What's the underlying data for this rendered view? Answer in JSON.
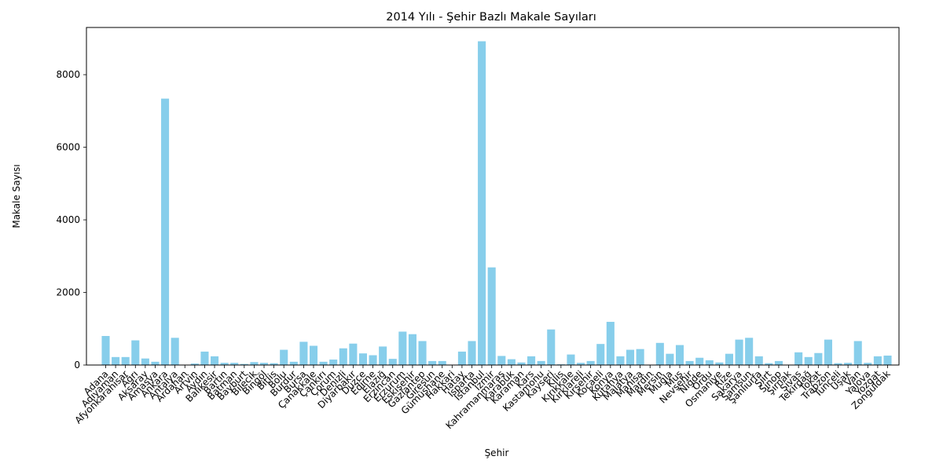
{
  "chart_data": {
    "type": "bar",
    "title": "2014 Yılı - Şehir Bazlı Makale Sayıları",
    "xlabel": "Şehir",
    "ylabel": "Makale Sayısı",
    "ylim": [
      0,
      9300
    ],
    "yticks": [
      0,
      2000,
      4000,
      6000,
      8000
    ],
    "grid": false,
    "bar_color": "#87ceeb",
    "categories": [
      "Adana",
      "Adıyaman",
      "Afyonkarahisar",
      "Ağrı",
      "Aksaray",
      "Amasya",
      "Ankara",
      "Antalya",
      "Ardahan",
      "Artvin",
      "Aydın",
      "Balıkesir",
      "Bartın",
      "Batman",
      "Bayburt",
      "Bilecik",
      "Bingöl",
      "Bitlis",
      "Bolu",
      "Burdur",
      "Bursa",
      "Çanakkale",
      "Çankırı",
      "Çorum",
      "Denizli",
      "Diyarbakır",
      "Düzce",
      "Edirne",
      "Elazığ",
      "Erzincan",
      "Erzurum",
      "Eskişehir",
      "Gaziantep",
      "Giresun",
      "Gümüşhane",
      "Hakkari",
      "Hatay",
      "Isparta",
      "İstanbul",
      "İzmir",
      "Kahramanmaraş",
      "Karabük",
      "Karaman",
      "Kars",
      "Kastamonu",
      "Kayseri",
      "Kilis",
      "Kırıkkale",
      "Kırklareli",
      "Kırşehir",
      "Kocaeli",
      "Konya",
      "Kütahya",
      "Malatya",
      "Manisa",
      "Mardin",
      "Mersin",
      "Muğla",
      "Muş",
      "Nevşehir",
      "Niğde",
      "Ordu",
      "Osmaniye",
      "Rize",
      "Sakarya",
      "Samsun",
      "Şanlıurfa",
      "Siirt",
      "Sinop",
      "Şırnak",
      "Sivas",
      "Tekirdağ",
      "Tokat",
      "Trabzon",
      "Tunceli",
      "Uşak",
      "Van",
      "Yalova",
      "Yozgat",
      "Zonguldak"
    ],
    "values": [
      800,
      220,
      220,
      680,
      180,
      90,
      7340,
      750,
      10,
      40,
      370,
      240,
      60,
      60,
      30,
      80,
      60,
      50,
      420,
      90,
      640,
      530,
      90,
      150,
      460,
      590,
      320,
      270,
      510,
      170,
      920,
      850,
      660,
      110,
      110,
      10,
      370,
      660,
      8920,
      2690,
      250,
      160,
      70,
      240,
      110,
      980,
      20,
      290,
      60,
      110,
      580,
      1190,
      240,
      420,
      440,
      10,
      610,
      310,
      550,
      110,
      200,
      130,
      70,
      310,
      700,
      750,
      240,
      50,
      110,
      10,
      350,
      220,
      330,
      700,
      50,
      60,
      660,
      60,
      240,
      260
    ]
  }
}
